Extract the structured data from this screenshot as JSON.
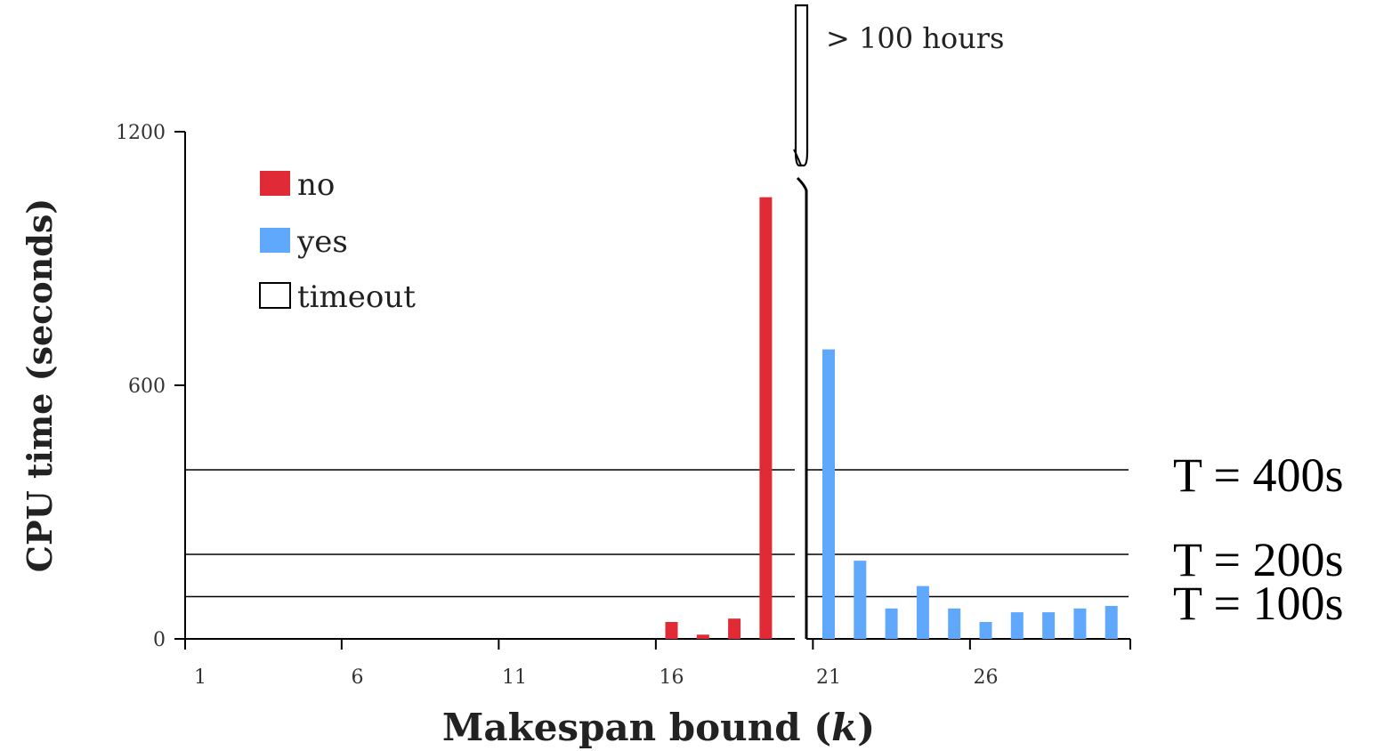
{
  "chart_data": {
    "type": "bar",
    "title": "",
    "xlabel": "Makespan bound (",
    "xlabel_var": "k",
    "xlabel_end": ")",
    "ylabel": "CPU time (seconds)",
    "ylim": [
      0,
      1200
    ],
    "yticks": [
      0,
      600,
      1200
    ],
    "xlim": [
      1,
      30
    ],
    "xticks": [
      1,
      6,
      11,
      16,
      21,
      26
    ],
    "grid": false,
    "legend_position": "top-left",
    "colors": {
      "no": "#e02a35",
      "yes": "#60a8fc",
      "timeout": "#ffffff"
    },
    "legend": [
      {
        "key": "no",
        "label": "no",
        "color": "#e02a35"
      },
      {
        "key": "yes",
        "label": "yes",
        "color": "#60a8fc"
      },
      {
        "key": "timeout",
        "label": "timeout",
        "color": "#ffffff"
      }
    ],
    "series": [
      {
        "name": "no",
        "color": "#e02a35",
        "points": [
          {
            "x": 16,
            "y": 40
          },
          {
            "x": 17,
            "y": 10
          },
          {
            "x": 18,
            "y": 48
          },
          {
            "x": 19,
            "y": 1045
          }
        ]
      },
      {
        "name": "yes",
        "color": "#60a8fc",
        "points": [
          {
            "x": 21,
            "y": 685
          },
          {
            "x": 22,
            "y": 185
          },
          {
            "x": 23,
            "y": 72
          },
          {
            "x": 24,
            "y": 125
          },
          {
            "x": 25,
            "y": 72
          },
          {
            "x": 26,
            "y": 40
          },
          {
            "x": 27,
            "y": 63
          },
          {
            "x": 28,
            "y": 63
          },
          {
            "x": 29,
            "y": 72
          },
          {
            "x": 30,
            "y": 78
          }
        ]
      },
      {
        "name": "timeout",
        "color": "#ffffff",
        "points": [
          {
            "x": 20,
            "label": "> 100 hours"
          }
        ]
      }
    ],
    "thresholds": [
      {
        "value": 400,
        "label": "T = 400s"
      },
      {
        "value": 200,
        "label": "T = 200s"
      },
      {
        "value": 100,
        "label": "T = 100s"
      }
    ],
    "break_annotation": "> 100 hours"
  }
}
